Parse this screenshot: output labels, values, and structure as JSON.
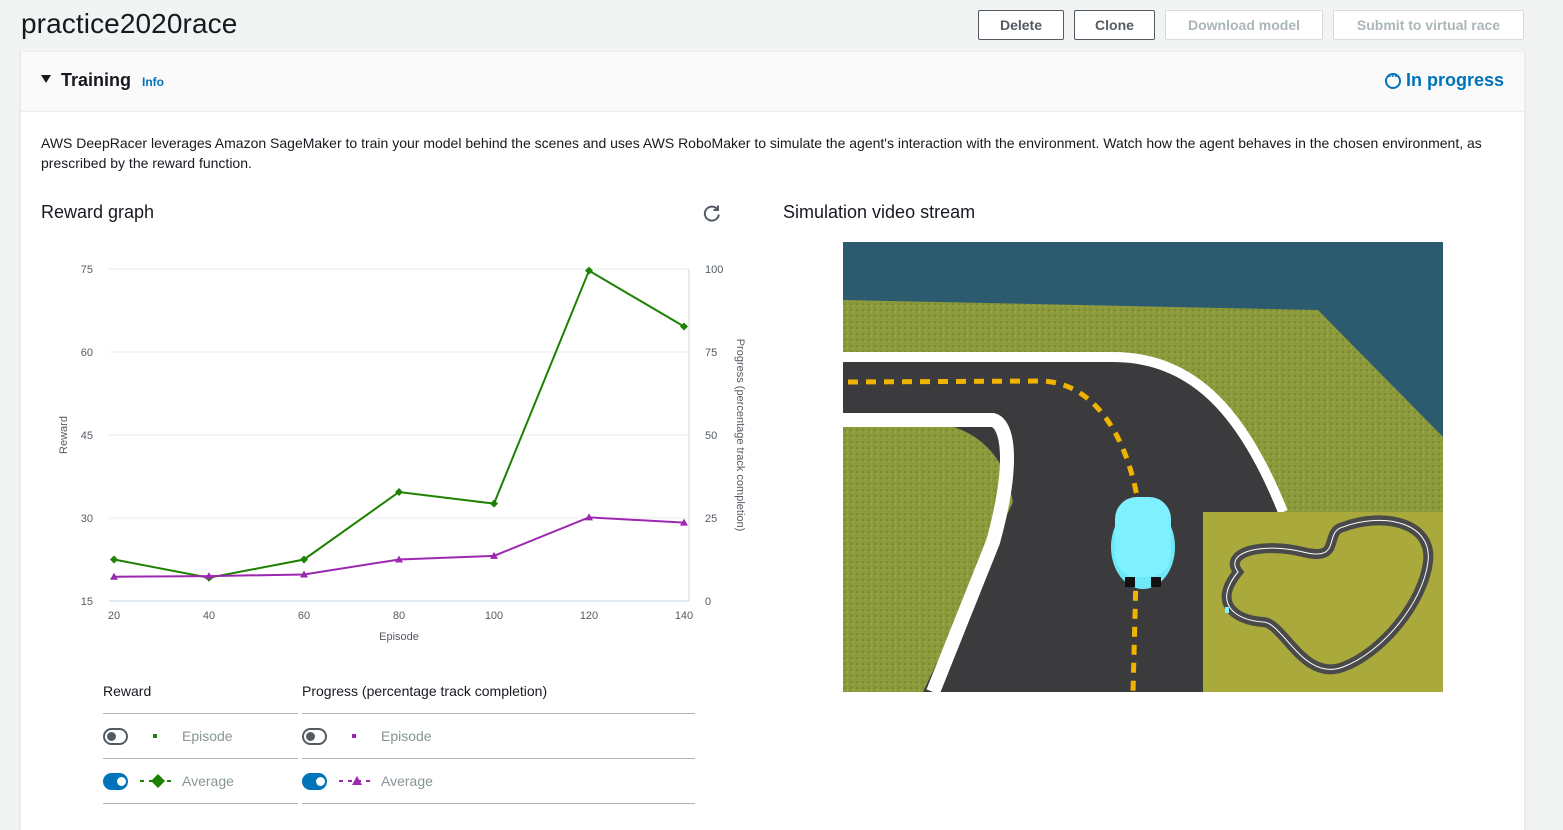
{
  "page": {
    "title": "practice2020race"
  },
  "actions": {
    "delete": "Delete",
    "clone": "Clone",
    "download": "Download model",
    "submit": "Submit to virtual race"
  },
  "training": {
    "title": "Training",
    "info": "Info",
    "status": "In progress",
    "status_color": "#0073bb",
    "description": "AWS DeepRacer leverages Amazon SageMaker to train your model behind the scenes and uses AWS RoboMaker to simulate the agent's interaction with the environment. Watch how the agent behaves in the chosen environment, as prescribed by the reward function."
  },
  "reward_graph": {
    "title": "Reward graph",
    "refresh_icon": "refresh-icon"
  },
  "video": {
    "title": "Simulation video stream"
  },
  "chart_data": {
    "type": "line",
    "xlabel": "Episode",
    "ylabel": "Reward",
    "y2label": "Progress (percentage track completion)",
    "x": [
      20,
      40,
      60,
      80,
      100,
      120,
      140
    ],
    "xticks": [
      "20",
      "40",
      "60",
      "80",
      "100",
      "120",
      "140"
    ],
    "ylim": [
      15,
      75
    ],
    "yticks": [
      "15",
      "30",
      "45",
      "60",
      "75"
    ],
    "y2lim": [
      0,
      100
    ],
    "y2ticks": [
      "0",
      "25",
      "50",
      "75",
      "100"
    ],
    "series": [
      {
        "name": "Average",
        "group": "Reward",
        "axis": "left",
        "color": "#1d8102",
        "marker": "diamond",
        "values": [
          22.5,
          19.2,
          22.5,
          34.7,
          32.6,
          74.7,
          64.6
        ]
      },
      {
        "name": "Average",
        "group": "Progress (percentage track completion)",
        "axis": "right",
        "color": "#9c27b0",
        "marker": "triangle",
        "values": [
          7.3,
          7.5,
          8.0,
          12.5,
          13.6,
          25.2,
          23.6
        ]
      }
    ],
    "grid": true
  },
  "legend": {
    "reward": {
      "header": "Reward",
      "episode": {
        "label": "Episode",
        "on": false,
        "color": "#1d8102"
      },
      "average": {
        "label": "Average",
        "on": true,
        "color": "#1d8102"
      }
    },
    "progress": {
      "header": "Progress (percentage track completion)",
      "episode": {
        "label": "Episode",
        "on": false,
        "color": "#9c27b0"
      },
      "average": {
        "label": "Average",
        "on": true,
        "color": "#9c27b0"
      }
    }
  }
}
